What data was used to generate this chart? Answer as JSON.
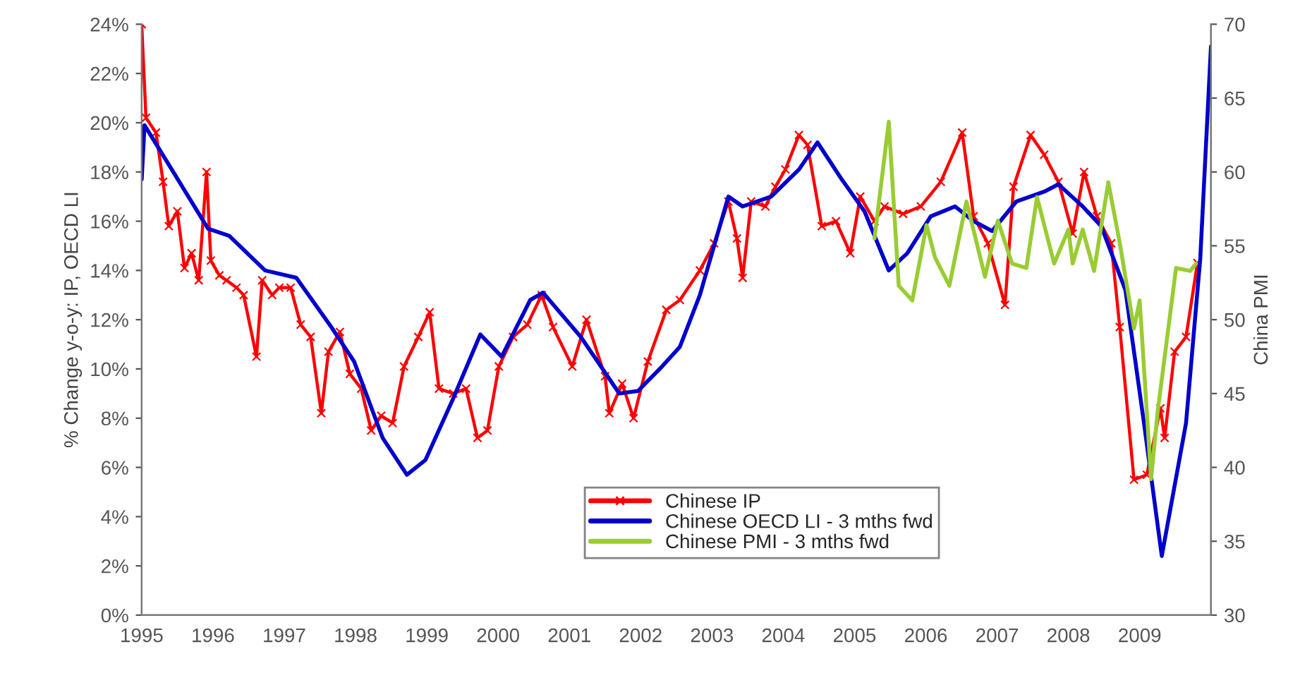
{
  "chart_data": {
    "type": "line",
    "xlabel": null,
    "ylabel": "% Change y-o-y: IP, OECD LI",
    "y2label": "China PMI",
    "xlim": [
      1995,
      2010
    ],
    "xticks": [
      {
        "value": 1995,
        "label": "1995"
      },
      {
        "value": 1996,
        "label": "1996"
      },
      {
        "value": 1997,
        "label": "1997"
      },
      {
        "value": 1998,
        "label": "1998"
      },
      {
        "value": 1999,
        "label": "1999"
      },
      {
        "value": 2000,
        "label": "2000"
      },
      {
        "value": 2001,
        "label": "2001"
      },
      {
        "value": 2002,
        "label": "2002"
      },
      {
        "value": 2003,
        "label": "2003"
      },
      {
        "value": 2004,
        "label": "2004"
      },
      {
        "value": 2005,
        "label": "2005"
      },
      {
        "value": 2006,
        "label": "2006"
      },
      {
        "value": 2007,
        "label": "2007"
      },
      {
        "value": 2008,
        "label": "2008"
      },
      {
        "value": 2009,
        "label": "2009"
      },
      {
        "value": 2010,
        "label": null
      }
    ],
    "ylim": [
      0,
      24
    ],
    "yticks": [
      {
        "value": 0,
        "label": "0%"
      },
      {
        "value": 2,
        "label": "2%"
      },
      {
        "value": 4,
        "label": "4%"
      },
      {
        "value": 6,
        "label": "6%"
      },
      {
        "value": 8,
        "label": "8%"
      },
      {
        "value": 10,
        "label": "10%"
      },
      {
        "value": 12,
        "label": "12%"
      },
      {
        "value": 14,
        "label": "14%"
      },
      {
        "value": 16,
        "label": "16%"
      },
      {
        "value": 18,
        "label": "18%"
      },
      {
        "value": 20,
        "label": "20%"
      },
      {
        "value": 22,
        "label": "22%"
      },
      {
        "value": 24,
        "label": "24%"
      }
    ],
    "y2lim": [
      30,
      70
    ],
    "y2ticks": [
      30,
      35,
      40,
      45,
      50,
      55,
      60,
      65,
      70
    ],
    "grid": false,
    "legend": "bottom",
    "series": [
      {
        "name": "Chinese IP",
        "color": "#ff0000",
        "marker": "cross",
        "x": [
          1995.0,
          1995.06,
          1995.2,
          1995.3,
          1995.38,
          1995.5,
          1995.6,
          1995.7,
          1995.8,
          1995.91,
          1995.97,
          1996.09,
          1996.19,
          1996.33,
          1996.43,
          1996.61,
          1996.69,
          1996.83,
          1996.93,
          1997.09,
          1997.23,
          1997.37,
          1997.52,
          1997.62,
          1997.78,
          1997.92,
          1998.08,
          1998.22,
          1998.36,
          1998.52,
          1998.68,
          1998.88,
          1999.04,
          1999.17,
          1999.37,
          1999.55,
          1999.71,
          1999.85,
          2000.01,
          2000.21,
          2000.41,
          2000.61,
          2000.77,
          2001.04,
          2001.24,
          2001.5,
          2001.56,
          2001.74,
          2001.9,
          2002.1,
          2002.36,
          2002.55,
          2002.83,
          2003.03,
          2003.23,
          2003.35,
          2003.43,
          2003.55,
          2003.75,
          2003.89,
          2004.03,
          2004.22,
          2004.34,
          2004.54,
          2004.74,
          2004.94,
          2005.08,
          2005.28,
          2005.42,
          2005.68,
          2005.93,
          2006.21,
          2006.51,
          2006.67,
          2006.87,
          2007.11,
          2007.23,
          2007.47,
          2007.66,
          2007.86,
          2008.06,
          2008.22,
          2008.4,
          2008.6,
          2008.72,
          2008.92,
          2009.1,
          2009.29,
          2009.35,
          2009.49,
          2009.65,
          2009.81
        ],
        "values": [
          24.0,
          20.2,
          19.6,
          17.6,
          15.8,
          16.4,
          14.1,
          14.7,
          13.6,
          18.0,
          14.4,
          13.8,
          13.6,
          13.3,
          13.0,
          10.5,
          13.6,
          13.0,
          13.3,
          13.3,
          11.8,
          11.3,
          8.2,
          10.7,
          11.5,
          9.8,
          9.2,
          7.5,
          8.1,
          7.8,
          10.1,
          11.3,
          12.3,
          9.2,
          9.0,
          9.2,
          7.2,
          7.5,
          10.1,
          11.3,
          11.8,
          13.0,
          11.7,
          10.1,
          12.0,
          9.7,
          8.2,
          9.4,
          8.0,
          10.3,
          12.4,
          12.8,
          14.0,
          15.1,
          16.8,
          15.3,
          13.7,
          16.8,
          16.6,
          17.4,
          18.1,
          19.5,
          19.1,
          15.8,
          16.0,
          14.7,
          17.0,
          16.0,
          16.6,
          16.3,
          16.6,
          17.6,
          19.6,
          16.2,
          15.1,
          12.6,
          17.4,
          19.5,
          18.7,
          17.6,
          15.5,
          18.0,
          16.2,
          15.1,
          11.7,
          5.5,
          5.7,
          8.4,
          7.2,
          10.7,
          11.3,
          14.3
        ]
      },
      {
        "name": "Chinese OECD LI - 3 mths fwd",
        "color": "#0000cc",
        "x": [
          1995.0,
          1995.04,
          1995.93,
          1996.23,
          1996.73,
          1997.17,
          1997.66,
          1997.98,
          1998.38,
          1998.72,
          1998.98,
          1999.37,
          1999.75,
          2000.05,
          2000.45,
          2000.63,
          2001.16,
          2001.7,
          2001.96,
          2002.3,
          2002.55,
          2002.83,
          2003.23,
          2003.43,
          2003.83,
          2004.22,
          2004.48,
          2004.82,
          2005.14,
          2005.48,
          2005.74,
          2006.07,
          2006.41,
          2006.67,
          2006.93,
          2007.27,
          2007.66,
          2007.86,
          2008.2,
          2008.46,
          2008.8,
          2009.06,
          2009.31,
          2009.65,
          2009.85,
          2010.0
        ],
        "values": [
          17.7,
          19.9,
          15.7,
          15.4,
          14.0,
          13.7,
          11.7,
          10.3,
          7.2,
          5.7,
          6.3,
          8.8,
          11.4,
          10.5,
          12.8,
          13.1,
          11.3,
          9.0,
          9.1,
          10.1,
          10.9,
          13.0,
          17.0,
          16.6,
          17.0,
          18.1,
          19.2,
          17.7,
          16.4,
          14.0,
          14.7,
          16.2,
          16.6,
          16.0,
          15.6,
          16.8,
          17.2,
          17.5,
          16.6,
          15.8,
          13.2,
          7.8,
          2.4,
          7.8,
          14.5,
          23.1
        ]
      },
      {
        "name": "Chinese PMI - 3 mths fwd",
        "color": "#99cc33",
        "axis": "y2",
        "x": [
          2005.28,
          2005.48,
          2005.62,
          2005.81,
          2006.01,
          2006.13,
          2006.33,
          2006.57,
          2006.83,
          2007.01,
          2007.21,
          2007.41,
          2007.56,
          2007.8,
          2008.0,
          2008.06,
          2008.2,
          2008.36,
          2008.56,
          2008.72,
          2008.92,
          2009.0,
          2009.16,
          2009.25,
          2009.51,
          2009.71,
          2009.79
        ],
        "values": [
          55.5,
          63.4,
          52.3,
          51.3,
          56.4,
          54.2,
          52.3,
          58.0,
          52.9,
          56.7,
          53.8,
          53.5,
          58.3,
          53.8,
          56.1,
          53.8,
          56.1,
          53.3,
          59.3,
          55.2,
          49.4,
          51.3,
          39.2,
          43.7,
          53.5,
          53.3,
          53.8
        ]
      }
    ]
  }
}
